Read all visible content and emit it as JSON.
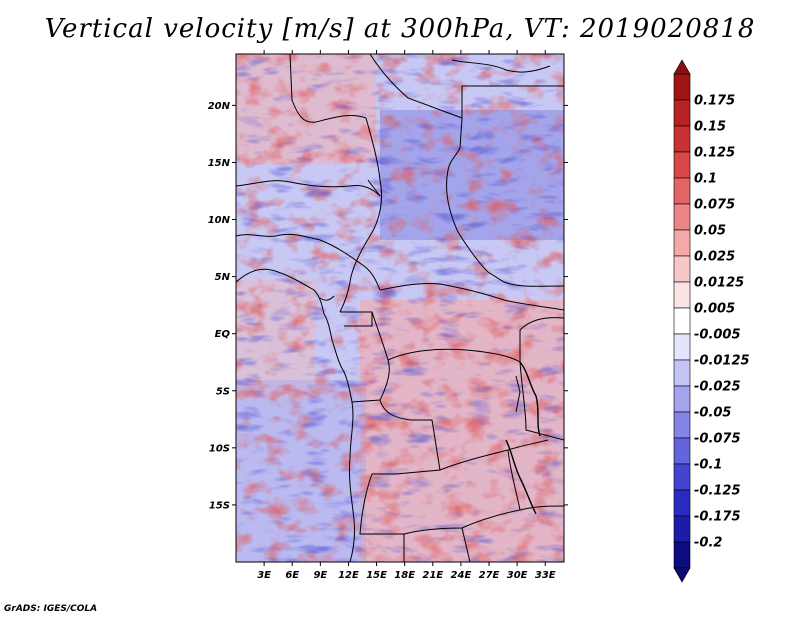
{
  "title": "Vertical velocity [m/s] at 300hPa, VT: 2019020818",
  "credit": "GrADS: IGES/COLA",
  "chart_data": {
    "type": "heatmap",
    "title": "Vertical velocity [m/s] at 300hPa, VT: 2019020818",
    "variable": "Vertical velocity",
    "units": "m/s",
    "level": "300hPa",
    "valid_time": "2019020818",
    "xlim": [
      0,
      35
    ],
    "ylim": [
      -20,
      24.5
    ],
    "x_ticks": [
      {
        "value": 3,
        "label": "3E"
      },
      {
        "value": 6,
        "label": "6E"
      },
      {
        "value": 9,
        "label": "9E"
      },
      {
        "value": 12,
        "label": "12E"
      },
      {
        "value": 15,
        "label": "15E"
      },
      {
        "value": 18,
        "label": "18E"
      },
      {
        "value": 21,
        "label": "21E"
      },
      {
        "value": 24,
        "label": "24E"
      },
      {
        "value": 27,
        "label": "27E"
      },
      {
        "value": 30,
        "label": "30E"
      },
      {
        "value": 33,
        "label": "33E"
      }
    ],
    "y_ticks": [
      {
        "value": 20,
        "label": "20N"
      },
      {
        "value": 15,
        "label": "15N"
      },
      {
        "value": 10,
        "label": "10N"
      },
      {
        "value": 5,
        "label": "5N"
      },
      {
        "value": 0,
        "label": "EQ"
      },
      {
        "value": -5,
        "label": "5S"
      },
      {
        "value": -10,
        "label": "10S"
      },
      {
        "value": -15,
        "label": "15S"
      }
    ],
    "colorbar": {
      "levels": [
        "0.175",
        "0.15",
        "0.125",
        "0.1",
        "0.075",
        "0.05",
        "0.025",
        "0.0125",
        "0.005",
        "-0.005",
        "-0.0125",
        "-0.025",
        "-0.05",
        "-0.075",
        "-0.1",
        "-0.125",
        "-0.175",
        "-0.2"
      ],
      "colors": [
        "#a01414",
        "#b82222",
        "#c83232",
        "#d84848",
        "#e26464",
        "#ec8686",
        "#f4a8a8",
        "#f8c8c8",
        "#fce4e4",
        "#ffffff",
        "#e4e4fc",
        "#c4c4f6",
        "#a4a4ee",
        "#8484e6",
        "#6464dc",
        "#4444d0",
        "#2a2ac0",
        "#1c1ca8",
        "#0c0c80"
      ]
    }
  }
}
